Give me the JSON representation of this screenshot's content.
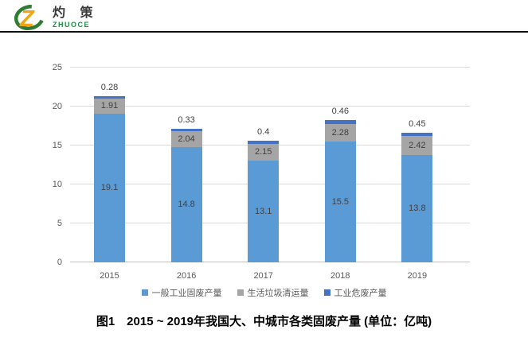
{
  "brand": {
    "name_cn": "灼 策",
    "name_en": "ZHUOCE",
    "logo_colors": {
      "z": "#F2A414",
      "swoosh": "#2E7D32"
    }
  },
  "chart_data": {
    "type": "bar",
    "stacked": true,
    "categories": [
      "2015",
      "2016",
      "2017",
      "2018",
      "2019"
    ],
    "series": [
      {
        "name": "一般工业固废产量",
        "color": "#5B9BD5",
        "label_position": "inside",
        "values": [
          19.1,
          14.8,
          13.1,
          15.5,
          13.8
        ]
      },
      {
        "name": "生活垃圾清运量",
        "color": "#A5A5A5",
        "label_position": "inside",
        "values": [
          1.91,
          2.04,
          2.15,
          2.28,
          2.42
        ]
      },
      {
        "name": "工业危废产量",
        "color": "#4472C4",
        "label_position": "above",
        "values": [
          0.28,
          0.33,
          0.4,
          0.46,
          0.45
        ]
      }
    ],
    "ylim": [
      0,
      25
    ],
    "yticks": [
      0,
      5,
      10,
      15,
      20,
      25
    ],
    "grid": true,
    "legend_position": "bottom",
    "label_color": "#404040",
    "tick_color": "#595959"
  },
  "caption": "图1　2015 ~ 2019年我国大、中城市各类固废产量 (单位：亿吨)"
}
